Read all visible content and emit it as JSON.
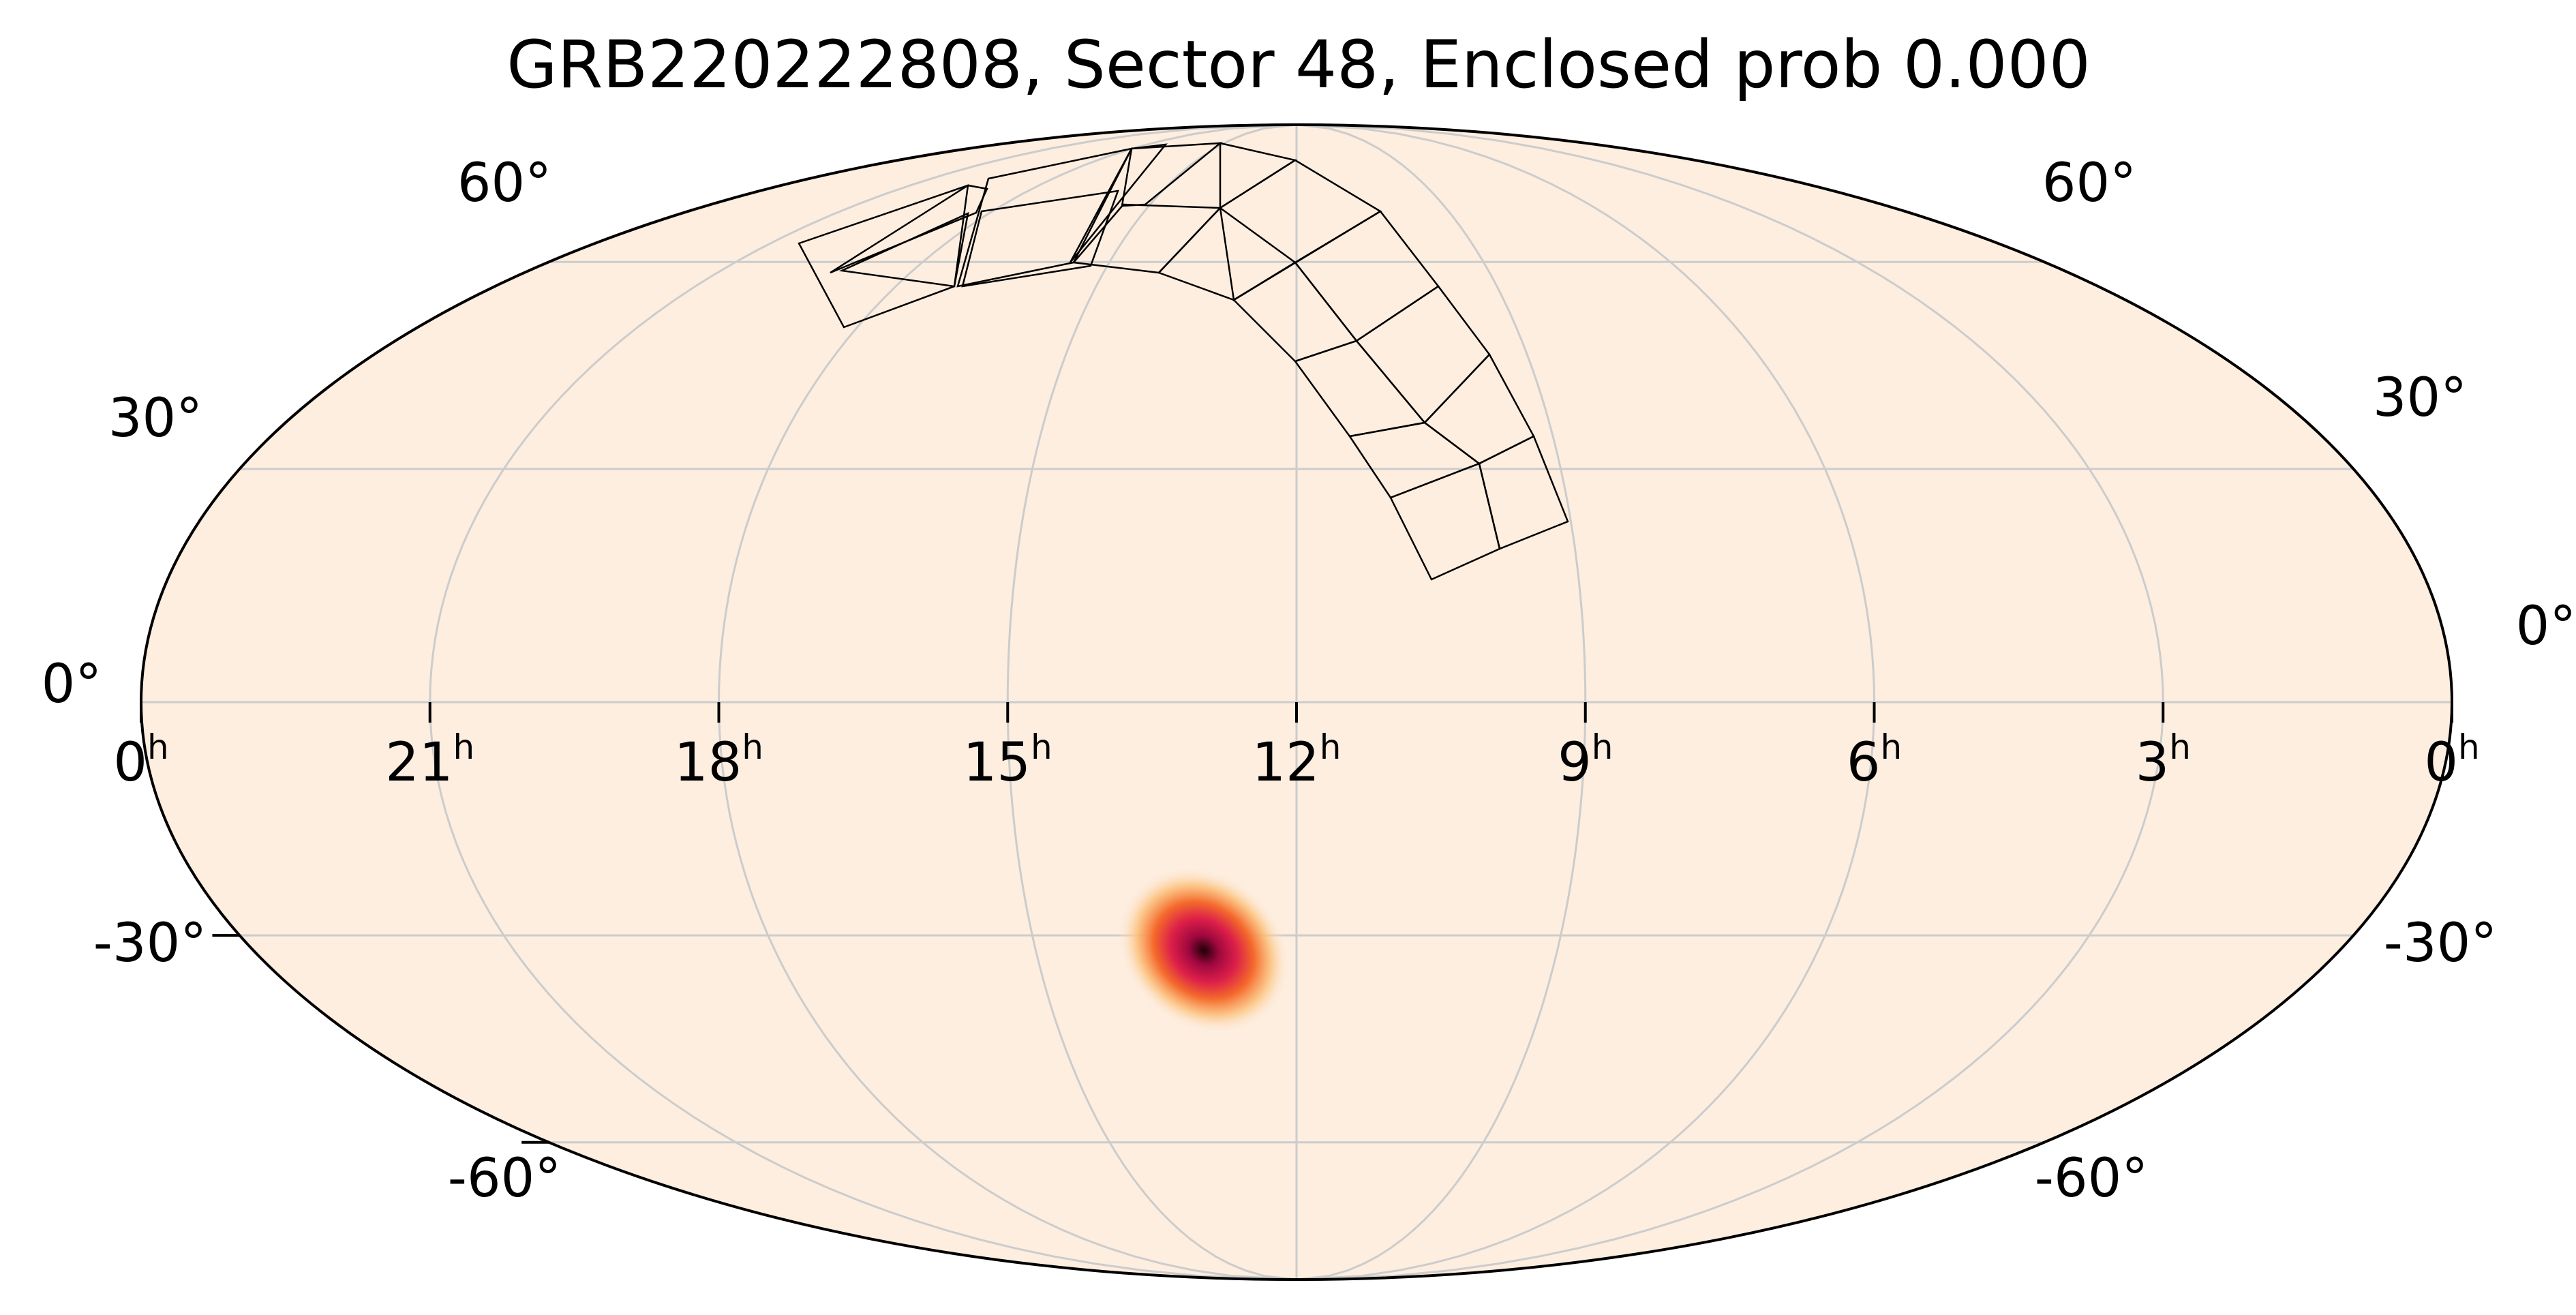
{
  "title": "GRB220222808, Sector 48, Enclosed prob 0.000",
  "chart_data": {
    "type": "heatmap",
    "projection": "mollweide",
    "title": "GRB220222808, Sector 48, Enclosed prob 0.000",
    "ra_tick_labels": [
      {
        "ra": 360,
        "label": "0",
        "sup": "h"
      },
      {
        "ra": 315,
        "label": "21",
        "sup": "h"
      },
      {
        "ra": 270,
        "label": "18",
        "sup": "h"
      },
      {
        "ra": 225,
        "label": "15",
        "sup": "h"
      },
      {
        "ra": 180,
        "label": "12",
        "sup": "h"
      },
      {
        "ra": 135,
        "label": "9",
        "sup": "h"
      },
      {
        "ra": 90,
        "label": "6",
        "sup": "h"
      },
      {
        "ra": 45,
        "label": "3",
        "sup": "h"
      },
      {
        "ra": 0,
        "label": "0",
        "sup": "h"
      }
    ],
    "dec_tick_labels": [
      {
        "dec": 60,
        "label": "60°"
      },
      {
        "dec": 30,
        "label": "30°"
      },
      {
        "dec": 0,
        "label": "0°"
      },
      {
        "dec": -30,
        "label": "-30°"
      },
      {
        "dec": -60,
        "label": "-60°"
      }
    ],
    "graticule": {
      "dec_lines": [
        -60,
        -30,
        0,
        30,
        60
      ],
      "ra_lines_deg": [
        0,
        45,
        90,
        135,
        180,
        225,
        270,
        315,
        360
      ],
      "color": "#cccccc"
    },
    "background_color": "#fdeee0",
    "probability_blob": {
      "ra_deg": 196,
      "dec_deg": -32,
      "sigma_ra_deg": 9,
      "sigma_dec_deg": 5,
      "colormap": [
        "#fdeee0",
        "#fdb866",
        "#f0552a",
        "#c8114e",
        "#200008"
      ]
    },
    "sector_camera_ccds": {
      "sector": 48,
      "ccd_footprints_count": 16
    }
  }
}
